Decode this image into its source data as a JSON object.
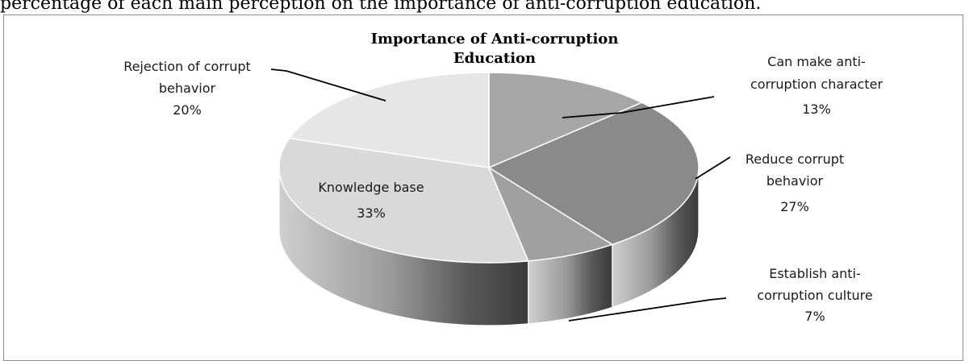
{
  "caption": "percentage of each main perception on the importance of anti-corruption education.",
  "chart_data": {
    "type": "pie",
    "style": "3d",
    "title": "Importance of Anti-corruption Education",
    "slices": [
      {
        "label": "Can make anti-corruption character",
        "value": 13,
        "value_label": "13%",
        "color": "#a6a6a6"
      },
      {
        "label": "Reduce  corrupt behavior",
        "value": 27,
        "value_label": "27%",
        "color": "#8a8a8a"
      },
      {
        "label": "Establish anti-corruption culture",
        "value": 7,
        "value_label": "7%",
        "color": "#a0a0a0"
      },
      {
        "label": "Knowledge base",
        "value": 33,
        "value_label": "33%",
        "color": "#d9d9d9"
      },
      {
        "label": "Rejection of corrupt behavior",
        "value": 20,
        "value_label": "20%",
        "color": "#e6e6e6"
      }
    ],
    "legend": "none"
  }
}
